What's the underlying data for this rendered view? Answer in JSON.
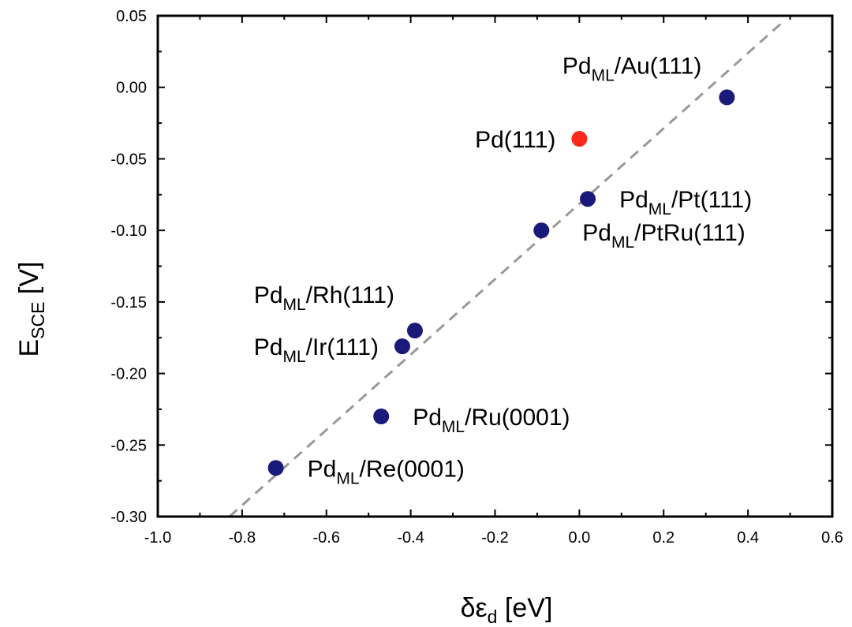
{
  "chart_data": {
    "type": "scatter",
    "title": "",
    "xlabel": {
      "symbol": "δε",
      "subscript": "d",
      "unit": " [eV]"
    },
    "ylabel": {
      "symbol": "E",
      "subscript": "SCE",
      "unit": " [V]"
    },
    "xlim": [
      -1.0,
      0.6
    ],
    "ylim": [
      -0.3,
      0.05
    ],
    "xticks": [
      -1.0,
      -0.8,
      -0.6,
      -0.4,
      -0.2,
      0.0,
      0.2,
      0.4,
      0.6
    ],
    "xtick_labels": [
      "-1.0",
      "-0.8",
      "-0.6",
      "-0.4",
      "-0.2",
      "0.0",
      "0.2",
      "0.4",
      "0.6"
    ],
    "yticks": [
      0.05,
      0.0,
      -0.05,
      -0.1,
      -0.15,
      -0.2,
      -0.25,
      -0.3
    ],
    "ytick_labels": [
      "0.05",
      "0.00",
      "-0.05",
      "-0.10",
      "-0.15",
      "-0.20",
      "-0.25",
      "-0.30"
    ],
    "grid": false,
    "colors": {
      "substrate": "#1a1a7a",
      "reference": "#ff2a1a",
      "fit": "#999999"
    },
    "fit_line": {
      "style": "dashed",
      "from": [
        -0.83,
        -0.3
      ],
      "to": [
        0.48,
        0.045
      ]
    },
    "points": [
      {
        "name": "Pd_ML/Au(111)",
        "base": "Pd",
        "sub": "ML",
        "rest": "/Au(111)",
        "x": 0.35,
        "y": -0.007,
        "color": "substrate",
        "anchor": "Au"
      },
      {
        "name": "Pd(111)",
        "base": "Pd(111)",
        "sub": "",
        "rest": "",
        "x": 0.0,
        "y": -0.036,
        "color": "reference",
        "anchor": "left"
      },
      {
        "name": "Pd_ML/Pt(111)",
        "base": "Pd",
        "sub": "ML",
        "rest": "/Pt(111)",
        "x": 0.02,
        "y": -0.078,
        "color": "substrate",
        "anchor": "right"
      },
      {
        "name": "Pd_ML/PtRu(111)",
        "base": "Pd",
        "sub": "ML",
        "rest": "/PtRu(111)",
        "x": -0.09,
        "y": -0.1,
        "color": "substrate",
        "anchor": "right-below"
      },
      {
        "name": "Pd_ML/Rh(111)",
        "base": "Pd",
        "sub": "ML",
        "rest": "/Rh(111)",
        "x": -0.39,
        "y": -0.17,
        "color": "substrate",
        "anchor": "Rh"
      },
      {
        "name": "Pd_ML/Ir(111)",
        "base": "Pd",
        "sub": "ML",
        "rest": "/Ir(111)",
        "x": -0.42,
        "y": -0.181,
        "color": "substrate",
        "anchor": "left"
      },
      {
        "name": "Pd_ML/Ru(0001)",
        "base": "Pd",
        "sub": "ML",
        "rest": "/Ru(0001)",
        "x": -0.47,
        "y": -0.23,
        "color": "substrate",
        "anchor": "right"
      },
      {
        "name": "Pd_ML/Re(0001)",
        "base": "Pd",
        "sub": "ML",
        "rest": "/Re(0001)",
        "x": -0.72,
        "y": -0.266,
        "color": "substrate",
        "anchor": "right"
      }
    ]
  }
}
